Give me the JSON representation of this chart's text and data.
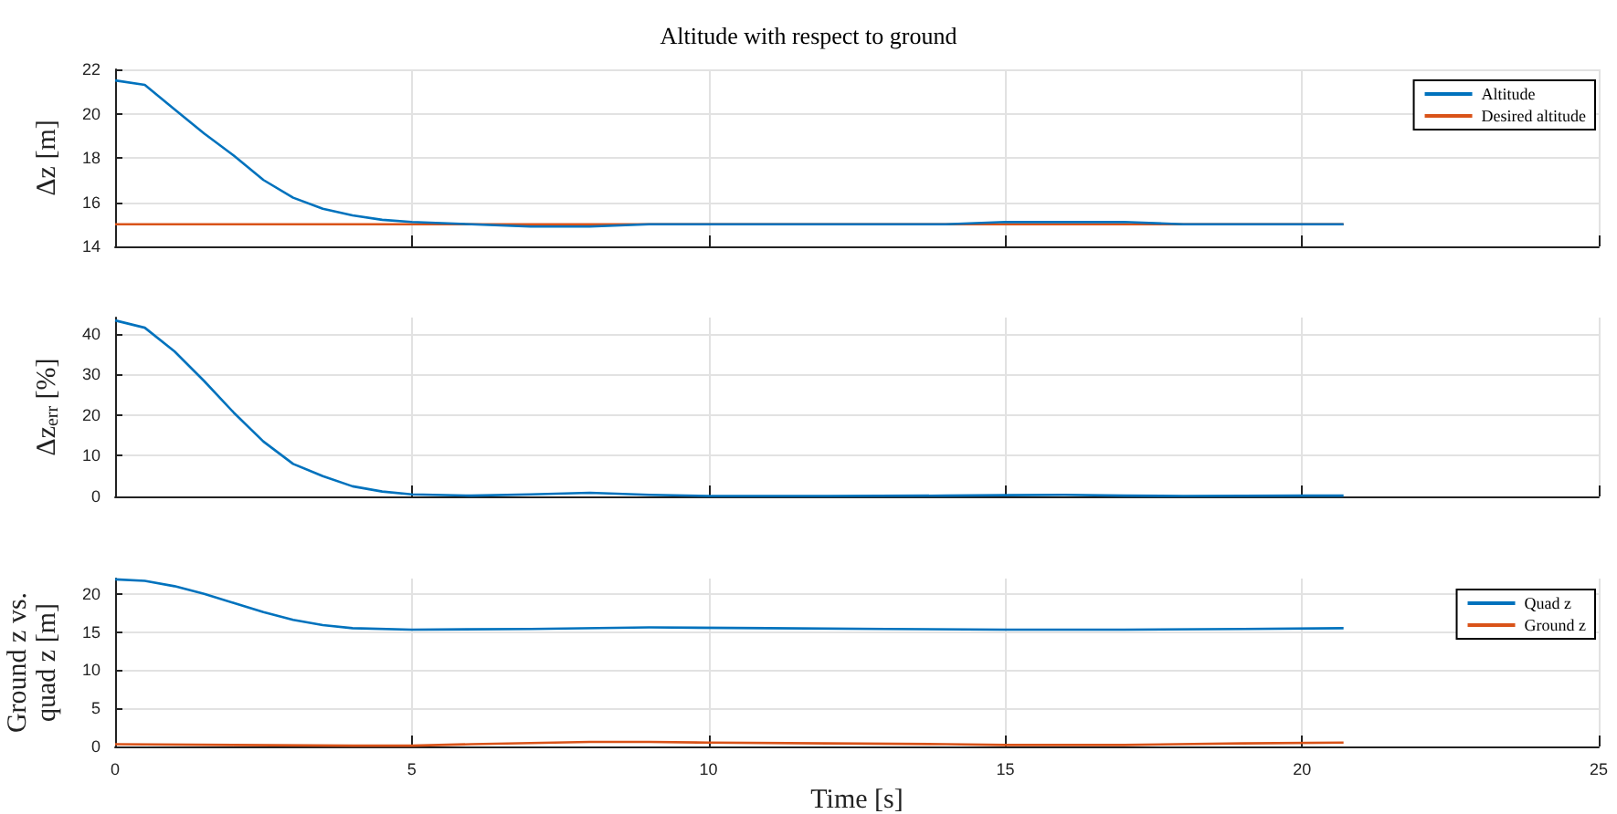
{
  "chart_data": [
    {
      "type": "line",
      "title": "Altitude with respect to ground",
      "ylabel": "Δz [m]",
      "xlim": [
        0,
        25
      ],
      "xticks": [
        0,
        5,
        10,
        15,
        20,
        25
      ],
      "ylim": [
        14,
        22
      ],
      "yticks": [
        14,
        16,
        18,
        20,
        22
      ],
      "grid": true,
      "legend": "top right",
      "tick_labels": "y",
      "series": [
        {
          "name": "Altitude",
          "color": "#0072bd",
          "x": [
            0,
            0.5,
            1,
            1.5,
            2,
            2.5,
            3,
            3.5,
            4,
            4.5,
            5,
            6,
            7,
            8,
            9,
            10,
            11,
            12,
            13,
            14,
            15,
            16,
            17,
            18,
            19,
            20,
            20.7
          ],
          "values": [
            21.5,
            21.3,
            20.2,
            19.1,
            18.1,
            17.0,
            16.2,
            15.7,
            15.4,
            15.2,
            15.1,
            15.0,
            14.9,
            14.9,
            15.0,
            15.0,
            15.0,
            15.0,
            15.0,
            15.0,
            15.1,
            15.1,
            15.1,
            15.0,
            15.0,
            15.0,
            15.0
          ]
        },
        {
          "name": "Desired altitude",
          "color": "#d95319",
          "x": [
            0,
            20.7
          ],
          "values": [
            15,
            15
          ]
        }
      ]
    },
    {
      "type": "line",
      "ylabel": "Δz$_{err}$ [%]",
      "xlim": [
        0,
        25
      ],
      "xticks": [
        0,
        5,
        10,
        15,
        20,
        25
      ],
      "ylim": [
        0,
        44
      ],
      "yticks": [
        0,
        10,
        20,
        30,
        40
      ],
      "grid": true,
      "tick_labels": "y",
      "series": [
        {
          "color": "#0072bd",
          "x": [
            0,
            0.5,
            1,
            1.5,
            2,
            2.5,
            3,
            3.5,
            4,
            4.5,
            5,
            6,
            7,
            8,
            9,
            10,
            12,
            14,
            15,
            16,
            17,
            18,
            20,
            20.7
          ],
          "values": [
            43.3,
            41.5,
            35.7,
            28.4,
            20.6,
            13.5,
            8,
            5,
            2.5,
            1.2,
            0.5,
            0.2,
            0.5,
            0.9,
            0.4,
            0.1,
            0.1,
            0.2,
            0.3,
            0.4,
            0.2,
            0.1,
            0.2,
            0.2
          ]
        }
      ]
    },
    {
      "type": "line",
      "ylabel": "Ground z vs. quad z [m]",
      "xlabel": "Time [s]",
      "xlim": [
        0,
        25
      ],
      "xticks": [
        0,
        5,
        10,
        15,
        20,
        25
      ],
      "ylim": [
        0,
        22
      ],
      "yticks": [
        0,
        5,
        10,
        15,
        20
      ],
      "grid": true,
      "legend": "top right",
      "series": [
        {
          "name": "Quad z",
          "color": "#0072bd",
          "x": [
            0,
            0.5,
            1,
            1.5,
            2,
            2.5,
            3,
            3.5,
            4,
            5,
            7,
            9,
            11,
            13,
            15,
            17,
            19,
            20.7
          ],
          "values": [
            21.9,
            21.7,
            21,
            20,
            18.8,
            17.6,
            16.6,
            15.9,
            15.5,
            15.3,
            15.4,
            15.6,
            15.5,
            15.4,
            15.3,
            15.3,
            15.4,
            15.5
          ]
        },
        {
          "name": "Ground z",
          "color": "#d95319",
          "x": [
            0,
            2,
            4,
            5,
            6,
            8,
            9,
            10,
            12,
            14,
            15,
            17,
            19,
            20.7
          ],
          "values": [
            0.3,
            0.2,
            0.1,
            0.1,
            0.3,
            0.6,
            0.6,
            0.5,
            0.4,
            0.3,
            0.2,
            0.2,
            0.4,
            0.5
          ]
        }
      ]
    }
  ]
}
